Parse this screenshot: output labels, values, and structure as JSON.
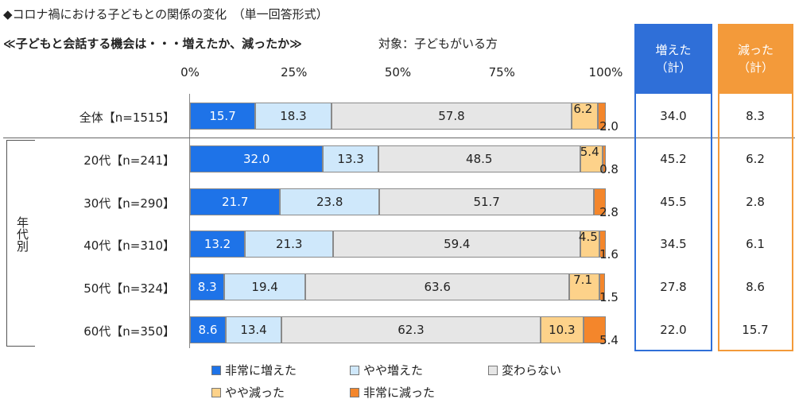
{
  "header": {
    "title": "◆コロナ禍における子どもとの関係の変化　（単一回答形式）",
    "subtitle": "≪子どもと会話する機会は・・・増えたか、減ったか≫",
    "target": "対象：子どもがいる方"
  },
  "group_label": "年代別",
  "summary": {
    "increase_header": "増えた\n（計）",
    "decrease_header": "減った\n（計）"
  },
  "colors": {
    "very_increase": "#1e73e8",
    "some_increase": "#cfe8fb",
    "no_change": "#e6e6e6",
    "some_decrease": "#fdd28a",
    "very_decrease": "#f4862b",
    "increase_box": "#2f6fd8",
    "decrease_box": "#f39a3a"
  },
  "chart_data": {
    "type": "bar",
    "orientation": "horizontal",
    "stacked": true,
    "percent": true,
    "xlim": [
      0,
      100
    ],
    "x_ticks": [
      "0%",
      "25%",
      "50%",
      "75%",
      "100%"
    ],
    "categories": [
      "全体【n=1515】",
      "20代【n=241】",
      "30代【n=290】",
      "40代【n=310】",
      "50代【n=324】",
      "60代【n=350】"
    ],
    "series": [
      {
        "name": "非常に増えた",
        "values": [
          15.7,
          32.0,
          21.7,
          13.2,
          8.3,
          8.6
        ]
      },
      {
        "name": "やや増えた",
        "values": [
          18.3,
          13.3,
          23.8,
          21.3,
          19.4,
          13.4
        ]
      },
      {
        "name": "変わらない",
        "values": [
          57.8,
          48.5,
          51.7,
          59.4,
          63.6,
          62.3
        ]
      },
      {
        "name": "やや減った",
        "values": [
          6.2,
          5.4,
          0,
          4.5,
          7.1,
          10.3
        ]
      },
      {
        "name": "非常に減った",
        "values": [
          2.0,
          0.8,
          2.8,
          1.6,
          1.5,
          5.4
        ]
      }
    ],
    "segment_labels": [
      [
        "15.7",
        "18.3",
        "57.8",
        "6.2",
        "2.0"
      ],
      [
        "32.0",
        "13.3",
        "48.5",
        "5.4",
        "0.8"
      ],
      [
        "21.7",
        "23.8",
        "51.7",
        "",
        "2.8"
      ],
      [
        "13.2",
        "21.3",
        "59.4",
        "4.5",
        "1.6"
      ],
      [
        "8.3",
        "19.4",
        "63.6",
        "7.1",
        "1.5"
      ],
      [
        "8.6",
        "13.4",
        "62.3",
        "10.3",
        "5.4"
      ]
    ],
    "increase_total": [
      "34.0",
      "45.2",
      "45.5",
      "34.5",
      "27.8",
      "22.0"
    ],
    "decrease_total": [
      "8.3",
      "6.2",
      "2.8",
      "6.1",
      "8.6",
      "15.7"
    ],
    "legend_placement": "bottom"
  }
}
